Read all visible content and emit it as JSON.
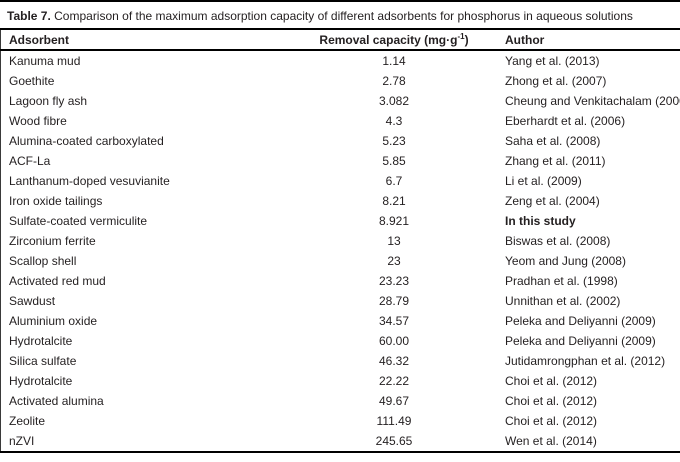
{
  "caption": {
    "label": "Table 7.",
    "text": " Comparison of the maximum adsorption capacity of different adsorbents for phosphorus in aqueous solutions"
  },
  "table": {
    "headers": {
      "adsorbent": "Adsorbent",
      "capacity_pre": "Removal capacity (mg·g",
      "capacity_sup": "-1",
      "capacity_post": ")",
      "author": "Author"
    },
    "rows": [
      {
        "adsorbent": "Kanuma mud",
        "capacity": "1.14",
        "author": "Yang et al. (2013)",
        "author_bold": false
      },
      {
        "adsorbent": "Goethite",
        "capacity": "2.78",
        "author": "Zhong et al. (2007)",
        "author_bold": false
      },
      {
        "adsorbent": "Lagoon fly ash",
        "capacity": "3.082",
        "author": "Cheung and Venkitachalam (2000)",
        "author_bold": false
      },
      {
        "adsorbent": "Wood fibre",
        "capacity": "4.3",
        "author": "Eberhardt et al. (2006)",
        "author_bold": false
      },
      {
        "adsorbent": "Alumina-coated carboxylated",
        "capacity": "5.23",
        "author": "Saha et al. (2008)",
        "author_bold": false
      },
      {
        "adsorbent": "ACF-La",
        "capacity": "5.85",
        "author": "Zhang et al. (2011)",
        "author_bold": false
      },
      {
        "adsorbent": "Lanthanum-doped vesuvianite",
        "capacity": "6.7",
        "author": "Li et al. (2009)",
        "author_bold": false
      },
      {
        "adsorbent": "Iron oxide tailings",
        "capacity": "8.21",
        "author": "Zeng et al. (2004)",
        "author_bold": false
      },
      {
        "adsorbent": "Sulfate-coated vermiculite",
        "capacity": "8.921",
        "author": "In this study",
        "author_bold": true
      },
      {
        "adsorbent": "Zirconium ferrite",
        "capacity": "13",
        "author": "Biswas et al. (2008)",
        "author_bold": false
      },
      {
        "adsorbent": "Scallop shell",
        "capacity": "23",
        "author": "Yeom and Jung (2008)",
        "author_bold": false
      },
      {
        "adsorbent": "Activated red mud",
        "capacity": "23.23",
        "author": "Pradhan et al. (1998)",
        "author_bold": false
      },
      {
        "adsorbent": "Sawdust",
        "capacity": "28.79",
        "author": "Unnithan et al. (2002)",
        "author_bold": false
      },
      {
        "adsorbent": "Aluminium oxide",
        "capacity": "34.57",
        "author": "Peleka and Deliyanni (2009)",
        "author_bold": false
      },
      {
        "adsorbent": "Hydrotalcite",
        "capacity": "60.00",
        "author": "Peleka and Deliyanni (2009)",
        "author_bold": false
      },
      {
        "adsorbent": "Silica sulfate",
        "capacity": "46.32",
        "author": "Jutidamrongphan et al. (2012)",
        "author_bold": false
      },
      {
        "adsorbent": "Hydrotalcite",
        "capacity": "22.22",
        "author": "Choi et al. (2012)",
        "author_bold": false
      },
      {
        "adsorbent": "Activated alumina",
        "capacity": "49.67",
        "author": "Choi et al. (2012)",
        "author_bold": false
      },
      {
        "adsorbent": "Zeolite",
        "capacity": "111.49",
        "author": "Choi et al. (2012)",
        "author_bold": false
      },
      {
        "adsorbent": "nZVI",
        "capacity": "245.65",
        "author": "Wen et al. (2014)",
        "author_bold": false
      }
    ]
  }
}
